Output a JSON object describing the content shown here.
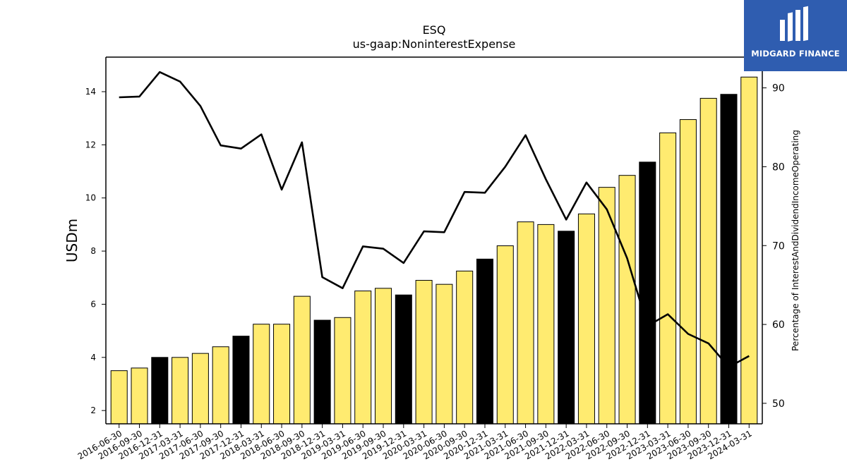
{
  "chart_data": {
    "type": "bar",
    "title": "ESQ",
    "subtitle": "us-gaap:NoninterestExpense",
    "ylabel": "USDm",
    "y2label": "Percentage of InterestAndDividendIncomeOperating",
    "ylim": [
      1.5,
      15.3
    ],
    "y2lim": [
      47.4,
      93.9
    ],
    "yticks": [
      2,
      4,
      6,
      8,
      10,
      12,
      14
    ],
    "y2ticks": [
      50,
      60,
      70,
      80,
      90
    ],
    "categories": [
      "2016-06-30",
      "2016-09-30",
      "2016-12-31",
      "2017-03-31",
      "2017-06-30",
      "2017-09-30",
      "2017-12-31",
      "2018-03-31",
      "2018-06-30",
      "2018-09-30",
      "2018-12-31",
      "2019-03-31",
      "2019-06-30",
      "2019-09-30",
      "2019-12-31",
      "2020-03-31",
      "2020-06-30",
      "2020-09-30",
      "2020-12-31",
      "2021-03-31",
      "2021-06-30",
      "2021-09-30",
      "2021-12-31",
      "2022-03-31",
      "2022-06-30",
      "2022-09-30",
      "2022-12-31",
      "2023-03-31",
      "2023-06-30",
      "2023-09-30",
      "2023-12-31",
      "2024-03-31"
    ],
    "series": [
      {
        "type": "bar",
        "values": [
          3.5,
          3.6,
          4.0,
          4.0,
          4.15,
          4.4,
          4.8,
          5.25,
          5.25,
          6.3,
          5.4,
          5.5,
          6.5,
          6.6,
          6.35,
          6.9,
          6.75,
          7.25,
          7.7,
          8.2,
          9.1,
          9.0,
          8.75,
          9.4,
          10.4,
          10.85,
          11.35,
          12.45,
          12.95,
          13.75,
          13.9,
          14.55
        ],
        "colors": [
          "#ffeb70",
          "#ffeb70",
          "#000000",
          "#ffeb70",
          "#ffeb70",
          "#ffeb70",
          "#000000",
          "#ffeb70",
          "#ffeb70",
          "#ffeb70",
          "#000000",
          "#ffeb70",
          "#ffeb70",
          "#ffeb70",
          "#000000",
          "#ffeb70",
          "#ffeb70",
          "#ffeb70",
          "#000000",
          "#ffeb70",
          "#ffeb70",
          "#ffeb70",
          "#000000",
          "#ffeb70",
          "#ffeb70",
          "#ffeb70",
          "#000000",
          "#ffeb70",
          "#ffeb70",
          "#ffeb70",
          "#000000",
          "#ffeb70"
        ]
      },
      {
        "type": "line",
        "axis": "right",
        "color": "#000000",
        "values": [
          88.8,
          88.9,
          92.0,
          90.8,
          87.7,
          82.7,
          82.3,
          84.1,
          77.1,
          83.1,
          66.0,
          64.6,
          69.9,
          69.6,
          67.8,
          71.8,
          71.7,
          76.8,
          76.7,
          80.0,
          84.0,
          78.4,
          73.3,
          78.0,
          74.6,
          68.4,
          59.8,
          61.3,
          58.8,
          57.6,
          54.6,
          56.0
        ]
      }
    ],
    "grid": false,
    "legend": "none"
  },
  "logo": {
    "text": "MIDGARD FINANCE",
    "background": "#2f5db0"
  }
}
